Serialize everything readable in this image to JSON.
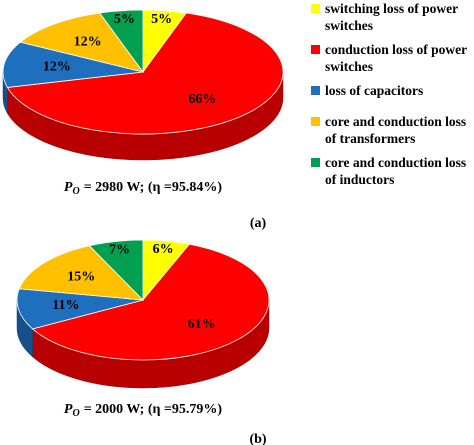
{
  "chart_data": [
    {
      "type": "pie",
      "categories": [
        "switching loss of power switches",
        "conduction loss of power switches",
        "loss of capacitors",
        "core and conduction loss of transformers",
        "core and conduction loss of inductors"
      ],
      "values": [
        5,
        66,
        12,
        12,
        5
      ],
      "value_labels": [
        "5%",
        "66%",
        "12%",
        "12%",
        "5%"
      ],
      "colors": [
        "#ffff00",
        "#ff0000",
        "#1f6fbf",
        "#ffc000",
        "#00a050"
      ],
      "caption": {
        "symbol": "P",
        "subscript": "O",
        "text": "= 2980 W; (η =95.84%)"
      },
      "label": "(a)"
    },
    {
      "type": "pie",
      "values": [
        6,
        61,
        11,
        15,
        7
      ],
      "value_labels": [
        "6%",
        "61%",
        "11%",
        "15%",
        "7%"
      ],
      "colors": [
        "#ffff00",
        "#ff0000",
        "#1f6fbf",
        "#ffc000",
        "#00a050"
      ],
      "caption": {
        "symbol": "P",
        "subscript": "O",
        "text": "= 2000 W; (η =95.79%)"
      },
      "label": "(b)"
    }
  ]
}
